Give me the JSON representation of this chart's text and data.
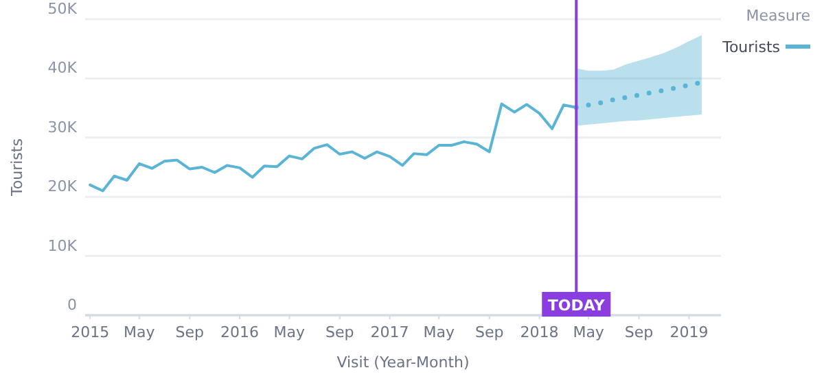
{
  "chart_data": {
    "type": "line",
    "xlabel": "Visit (Year-Month)",
    "ylabel": "Tourists",
    "legend_title": "Measure",
    "legend": "top right",
    "grid": "y",
    "xlim": [
      "2014-12-20",
      "2019-03-20"
    ],
    "ylim": [
      0,
      50000
    ],
    "xticks": [
      {
        "value": "2015-01",
        "label": "2015"
      },
      {
        "value": "2015-05",
        "label": "May"
      },
      {
        "value": "2015-09",
        "label": "Sep"
      },
      {
        "value": "2016-01",
        "label": "2016"
      },
      {
        "value": "2016-05",
        "label": "May"
      },
      {
        "value": "2016-09",
        "label": "Sep"
      },
      {
        "value": "2017-01",
        "label": "2017"
      },
      {
        "value": "2017-05",
        "label": "May"
      },
      {
        "value": "2017-09",
        "label": "Sep"
      },
      {
        "value": "2018-01",
        "label": "2018"
      },
      {
        "value": "2018-05",
        "label": "May"
      },
      {
        "value": "2018-09",
        "label": "Sep"
      },
      {
        "value": "2019-01",
        "label": "2019"
      }
    ],
    "yticks": [
      0,
      {
        "value": 10000,
        "label": "10K"
      },
      {
        "value": 20000,
        "label": "20K"
      },
      {
        "value": 30000,
        "label": "30K"
      },
      {
        "value": 40000,
        "label": "40K"
      },
      {
        "value": 50000,
        "label": "50K"
      }
    ],
    "ref_lines": [
      {
        "axis": "x",
        "value": "2018-04",
        "label": "TODAY",
        "color": "#8a3ee0"
      }
    ],
    "series": [
      {
        "name": "Tourists",
        "color": "#5ab4d6",
        "line_style": "solid",
        "x": [
          "2015-01",
          "2015-02",
          "2015-03",
          "2015-04",
          "2015-05",
          "2015-06",
          "2015-07",
          "2015-08",
          "2015-09",
          "2015-10",
          "2015-11",
          "2015-12",
          "2016-01",
          "2016-02",
          "2016-03",
          "2016-04",
          "2016-05",
          "2016-06",
          "2016-07",
          "2016-08",
          "2016-09",
          "2016-10",
          "2016-11",
          "2016-12",
          "2017-01",
          "2017-02",
          "2017-03",
          "2017-04",
          "2017-05",
          "2017-06",
          "2017-07",
          "2017-08",
          "2017-09",
          "2017-10",
          "2017-11",
          "2017-12",
          "2018-01",
          "2018-02",
          "2018-03",
          "2018-04"
        ],
        "values": [
          22000,
          21000,
          23500,
          22800,
          25600,
          24800,
          26000,
          26200,
          24700,
          25000,
          24100,
          25300,
          24900,
          23300,
          25200,
          25100,
          26900,
          26400,
          28200,
          28800,
          27200,
          27600,
          26500,
          27600,
          26800,
          25300,
          27300,
          27100,
          28700,
          28700,
          29300,
          28900,
          27600,
          35700,
          34300,
          35600,
          34100,
          31500,
          35500,
          35100
        ]
      },
      {
        "color": "#5ab4d6",
        "line_style": "dotted",
        "x": [
          "2018-04",
          "2018-05",
          "2018-06",
          "2018-07",
          "2018-08",
          "2018-09",
          "2018-10",
          "2018-11",
          "2018-12",
          "2019-01",
          "2019-02"
        ],
        "values": [
          35100,
          35500,
          35900,
          36400,
          36800,
          37200,
          37600,
          38000,
          38400,
          38900,
          39300
        ],
        "lower": [
          32000,
          32200,
          32400,
          32600,
          32800,
          32900,
          33100,
          33300,
          33500,
          33700,
          33900
        ],
        "upper": [
          41700,
          41300,
          41300,
          41500,
          42400,
          43000,
          43600,
          44300,
          45200,
          46300,
          47300
        ]
      }
    ]
  }
}
